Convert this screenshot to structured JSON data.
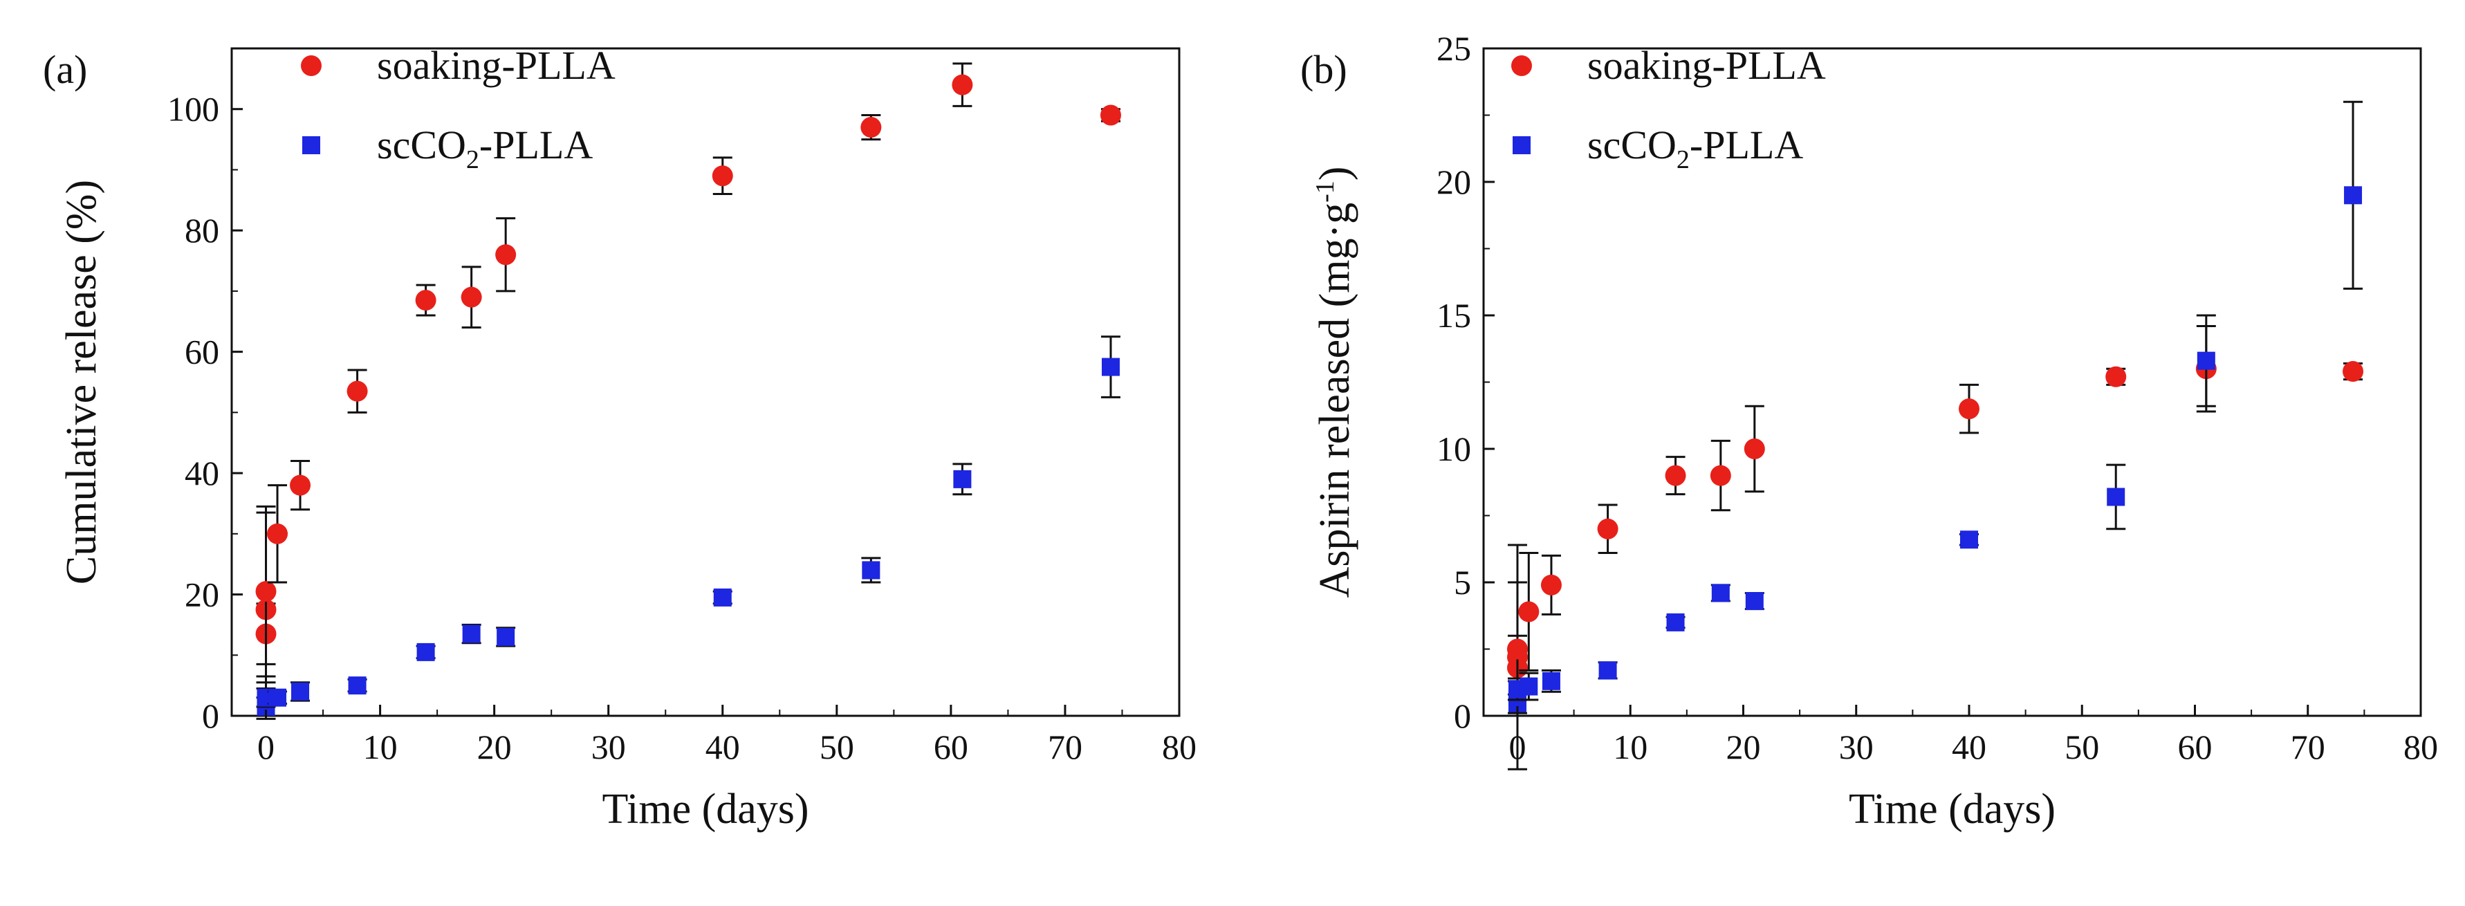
{
  "chart_data": [
    {
      "type": "scatter",
      "panel_label": "(a)",
      "xlabel": "Time (days)",
      "ylabel": "Cumulative release (%)",
      "xlim": [
        -3,
        80
      ],
      "ylim": [
        0,
        110
      ],
      "xticks": [
        0,
        10,
        20,
        30,
        40,
        50,
        60,
        70,
        80
      ],
      "yticks": [
        0,
        20,
        40,
        60,
        80,
        100
      ],
      "grid": false,
      "legend_position": "top-left",
      "series": [
        {
          "name": "soaking-PLLA",
          "marker": "circle",
          "color": "#e8201a",
          "x": [
            0,
            0,
            0,
            1,
            3,
            8,
            14,
            18,
            21,
            40,
            53,
            61,
            74
          ],
          "y": [
            13.5,
            17.5,
            20.5,
            30,
            38,
            53.5,
            68.5,
            69,
            76,
            89,
            97,
            104,
            99
          ],
          "err": [
            5,
            16,
            14,
            8,
            4,
            3.5,
            2.5,
            5,
            6,
            3,
            2,
            3.5,
            1
          ]
        },
        {
          "name": "scCO2-PLLA",
          "name_parts": {
            "pre": "scCO",
            "sub": "2",
            "post": "-PLLA"
          },
          "marker": "square",
          "color": "#1d26e0",
          "x": [
            0,
            0,
            0,
            1,
            3,
            8,
            14,
            18,
            21,
            40,
            53,
            61,
            74
          ],
          "y": [
            1.5,
            2.5,
            3,
            3,
            4,
            5,
            10.5,
            13.5,
            13,
            19.5,
            24,
            39,
            57.5
          ],
          "err": [
            1.5,
            3,
            1.5,
            1,
            1.5,
            1,
            1,
            1.5,
            1.5,
            1,
            2,
            2.5,
            5
          ]
        }
      ]
    },
    {
      "type": "scatter",
      "panel_label": "(b)",
      "xlabel": "Time (days)",
      "ylabel_parts": {
        "pre": "Aspirin released (mg·g",
        "sup": "-1",
        "post": ")"
      },
      "xlim": [
        -3,
        80
      ],
      "ylim": [
        0,
        25
      ],
      "xticks": [
        0,
        10,
        20,
        30,
        40,
        50,
        60,
        70,
        80
      ],
      "yticks": [
        0,
        5,
        10,
        15,
        20,
        25
      ],
      "grid": false,
      "legend_position": "top-left",
      "series": [
        {
          "name": "soaking-PLLA",
          "marker": "circle",
          "color": "#e8201a",
          "x": [
            0,
            0,
            0,
            1,
            3,
            8,
            14,
            18,
            21,
            40,
            53,
            61,
            74
          ],
          "y": [
            1.8,
            2.2,
            2.5,
            3.9,
            4.9,
            7,
            9,
            9,
            10,
            11.5,
            12.7,
            13,
            12.9
          ],
          "err": [
            1.2,
            4.2,
            2.5,
            2.2,
            1.1,
            0.9,
            0.7,
            1.3,
            1.6,
            0.9,
            0.3,
            1.6,
            0.3
          ]
        },
        {
          "name": "scCO2-PLLA",
          "name_parts": {
            "pre": "scCO",
            "sub": "2",
            "post": "-PLLA"
          },
          "marker": "square",
          "color": "#1d26e0",
          "x": [
            0,
            0,
            0,
            1,
            3,
            8,
            14,
            18,
            21,
            40,
            53,
            61,
            74
          ],
          "y": [
            0.4,
            0.7,
            1.0,
            1.1,
            1.3,
            1.7,
            3.5,
            4.6,
            4.3,
            6.6,
            8.2,
            13.3,
            19.5
          ],
          "err": [
            0.4,
            0.6,
            0.4,
            0.5,
            0.4,
            0.3,
            0.2,
            0.3,
            0.3,
            0.2,
            1.2,
            1.7,
            3.5
          ]
        }
      ]
    }
  ]
}
